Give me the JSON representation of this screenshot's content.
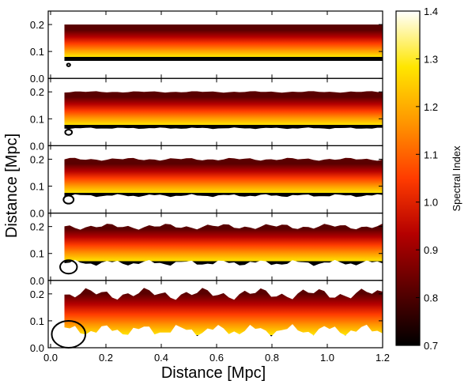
{
  "chart_data": {
    "type": "heatmap",
    "xlabel": "Distance [Mpc]",
    "ylabel": "Distance [Mpc]",
    "xlim": [
      0.0,
      1.25
    ],
    "ylim": [
      0.0,
      0.25
    ],
    "x_ticks": [
      "0.0",
      "0.2",
      "0.4",
      "0.6",
      "0.8",
      "1.0",
      "1.2"
    ],
    "y_ticks": [
      "0.0",
      "0.1",
      "0.2"
    ],
    "colorbar": {
      "label": "Spectral Index",
      "range": [
        0.7,
        1.4
      ],
      "ticks": [
        "0.7",
        "0.8",
        "0.9",
        "1.0",
        "1.1",
        "1.2",
        "1.3",
        "1.4"
      ],
      "colormap": "afmhot",
      "stops": [
        "#000000",
        "#5a0000",
        "#b40000",
        "#ff3c00",
        "#ff9600",
        "#ffe600",
        "#ffffff"
      ]
    },
    "panels": [
      {
        "x_range": [
          0.05,
          1.2
        ],
        "y_range": [
          0.0,
          0.2
        ],
        "beam_diameter": 0.01,
        "edge_roughness": 0,
        "index_top": 0.72,
        "index_bottom": 1.35
      },
      {
        "x_range": [
          0.05,
          1.2
        ],
        "y_range": [
          0.0,
          0.2
        ],
        "beam_diameter": 0.02,
        "edge_roughness": 1,
        "index_top": 0.72,
        "index_bottom": 1.35
      },
      {
        "x_range": [
          0.05,
          1.2
        ],
        "y_range": [
          0.0,
          0.2
        ],
        "beam_diameter": 0.03,
        "edge_roughness": 2,
        "index_top": 0.72,
        "index_bottom": 1.35
      },
      {
        "x_range": [
          0.05,
          1.2
        ],
        "y_range": [
          0.0,
          0.2
        ],
        "beam_diameter": 0.05,
        "edge_roughness": 4,
        "index_top": 0.74,
        "index_bottom": 1.35
      },
      {
        "x_range": [
          0.05,
          1.2
        ],
        "y_range": [
          0.0,
          0.2
        ],
        "beam_diameter": 0.1,
        "edge_roughness": 8,
        "index_top": 0.75,
        "index_bottom": 1.3
      }
    ]
  }
}
